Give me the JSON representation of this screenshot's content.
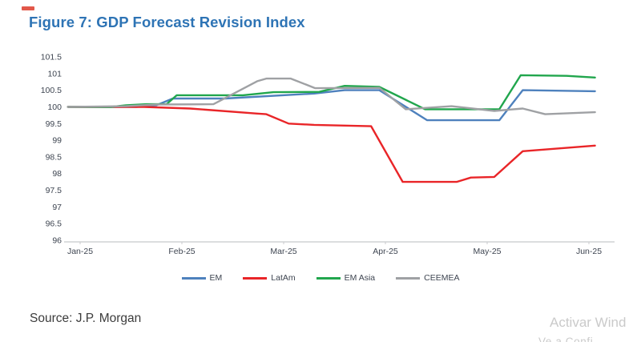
{
  "title": "Figure 7: GDP Forecast Revision Index",
  "source": "Source: J.P. Morgan",
  "watermark": {
    "line1": "Activar Wind",
    "line2": "Ve a Confi"
  },
  "colors": {
    "title": "#2E74B5",
    "axis_text": "#3E4551",
    "axis_line": "#C8CACC",
    "source_text": "#3C3C3C",
    "watermark": "#CACACA",
    "artifact_red": "#E2584A"
  },
  "chart_data": {
    "type": "line",
    "title": "GDP Forecast Revision Index",
    "x_tick_labels": [
      "Jan-25",
      "Feb-25",
      "Mar-25",
      "Apr-25",
      "May-25",
      "Jun-25"
    ],
    "y_ticks": [
      101.5,
      101,
      100.5,
      100,
      99.5,
      99,
      98.5,
      98,
      97.5,
      97,
      96.5,
      96
    ],
    "ylim": [
      96,
      101.5
    ],
    "xlim_months": [
      -0.12,
      5.06
    ],
    "grid": false,
    "legend_position": "bottom",
    "series": [
      {
        "name": "EM",
        "color": "#4E81BD",
        "points": [
          [
            -0.12,
            100
          ],
          [
            0.55,
            100
          ],
          [
            0.75,
            100.05
          ],
          [
            0.91,
            100.25
          ],
          [
            1.42,
            100.25
          ],
          [
            2.3,
            100.4
          ],
          [
            2.6,
            100.5
          ],
          [
            2.94,
            100.5
          ],
          [
            3.41,
            99.6
          ],
          [
            4.12,
            99.6
          ],
          [
            4.35,
            100.5
          ],
          [
            5.06,
            100.47
          ]
        ]
      },
      {
        "name": "LatAm",
        "color": "#E92528",
        "points": [
          [
            -0.12,
            100
          ],
          [
            0.63,
            100
          ],
          [
            1.08,
            99.95
          ],
          [
            1.74,
            99.8
          ],
          [
            1.83,
            99.78
          ],
          [
            2.05,
            99.5
          ],
          [
            2.3,
            99.46
          ],
          [
            2.86,
            99.42
          ],
          [
            3.17,
            97.75
          ],
          [
            3.7,
            97.75
          ],
          [
            3.84,
            97.88
          ],
          [
            4.07,
            97.9
          ],
          [
            4.35,
            98.67
          ],
          [
            5.06,
            98.84
          ]
        ]
      },
      {
        "name": "EM Asia",
        "color": "#21A64D",
        "points": [
          [
            -0.12,
            100
          ],
          [
            0.3,
            100
          ],
          [
            0.45,
            100.05
          ],
          [
            0.65,
            100.08
          ],
          [
            0.85,
            100.08
          ],
          [
            0.95,
            100.35
          ],
          [
            1.6,
            100.35
          ],
          [
            1.9,
            100.44
          ],
          [
            2.35,
            100.45
          ],
          [
            2.6,
            100.63
          ],
          [
            2.94,
            100.6
          ],
          [
            3.39,
            99.93
          ],
          [
            4.12,
            99.93
          ],
          [
            4.33,
            100.95
          ],
          [
            4.78,
            100.93
          ],
          [
            5.06,
            100.88
          ]
        ]
      },
      {
        "name": "CEEMEA",
        "color": "#9FA1A4",
        "points": [
          [
            -0.12,
            100
          ],
          [
            0.45,
            100.02
          ],
          [
            0.75,
            100.07
          ],
          [
            1.31,
            100.08
          ],
          [
            1.74,
            100.77
          ],
          [
            1.83,
            100.85
          ],
          [
            2.07,
            100.85
          ],
          [
            2.31,
            100.56
          ],
          [
            2.94,
            100.57
          ],
          [
            3.2,
            99.93
          ],
          [
            3.65,
            100.02
          ],
          [
            4.07,
            99.88
          ],
          [
            4.35,
            99.95
          ],
          [
            4.57,
            99.78
          ],
          [
            5.06,
            99.84
          ]
        ]
      }
    ]
  }
}
